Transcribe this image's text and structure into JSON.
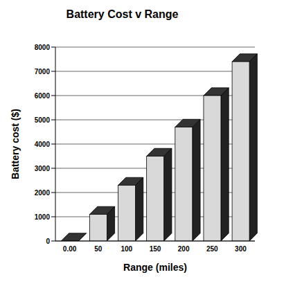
{
  "chart_data": {
    "type": "bar",
    "title": "Battery Cost v Range",
    "x_label": "Range (miles)",
    "y_label": "Battery cost ($)",
    "categories": [
      "0.00",
      "50",
      "100",
      "150",
      "200",
      "250",
      "300"
    ],
    "values": [
      0,
      1100,
      2300,
      3500,
      4700,
      6000,
      7400
    ],
    "color": "#d9d9d9",
    "ylim": [
      0,
      8000
    ],
    "yticks": [
      0,
      1000,
      2000,
      3000,
      4000,
      5000,
      6000,
      7000,
      8000
    ],
    "grid": true
  }
}
